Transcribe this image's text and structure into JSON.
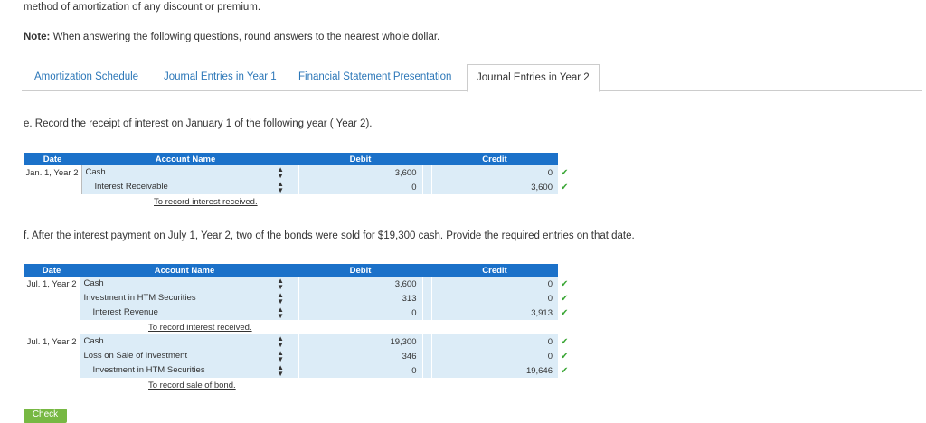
{
  "intro_text": "method of amortization of any discount or premium.",
  "note": {
    "label": "Note:",
    "text": " When answering the following questions, round answers to the nearest whole dollar."
  },
  "tabs": [
    {
      "label": "Amortization Schedule"
    },
    {
      "label": "Journal Entries in Year 1"
    },
    {
      "label": "Financial Statement Presentation"
    },
    {
      "label": "Journal Entries in Year 2"
    }
  ],
  "question_e": "e. Record the receipt of interest on January 1 of the following year ( Year 2).",
  "question_f": "f. After the interest payment on July 1, Year 2, two of the bonds were sold for $19,300 cash. Provide the required entries on that date.",
  "headers": {
    "date": "Date",
    "account": "Account Name",
    "debit": "Debit",
    "credit": "Credit"
  },
  "table_e": {
    "rows": [
      {
        "date": "Jan. 1, Year 2",
        "account": "Cash",
        "debit": "3,600",
        "credit": "0"
      },
      {
        "date": "",
        "account": "Interest Receivable",
        "debit": "0",
        "credit": "3,600"
      }
    ],
    "memo": "To record interest received."
  },
  "table_f": {
    "entry1": {
      "rows": [
        {
          "date": "Jul. 1, Year 2",
          "account": "Cash",
          "debit": "3,600",
          "credit": "0"
        },
        {
          "date": "",
          "account": "Investment in HTM Securities",
          "debit": "313",
          "credit": "0"
        },
        {
          "date": "",
          "account": "Interest Revenue",
          "debit": "0",
          "credit": "3,913"
        }
      ],
      "memo": "To record interest received."
    },
    "entry2": {
      "rows": [
        {
          "date": "Jul. 1, Year 2",
          "account": "Cash",
          "debit": "19,300",
          "credit": "0"
        },
        {
          "date": "",
          "account": "Loss on Sale of Investment",
          "debit": "346",
          "credit": "0"
        },
        {
          "date": "",
          "account": "Investment in HTM Securities",
          "debit": "0",
          "credit": "19,646"
        }
      ],
      "memo": "To record sale of bond."
    }
  },
  "check_button": "Check",
  "icons": {
    "select": "select-arrows-icon",
    "correct": "checkmark-icon"
  },
  "colors": {
    "header": "#1b71c9",
    "cell": "#dcecf7",
    "correct": "#3aa635",
    "link": "#2c77b8"
  }
}
